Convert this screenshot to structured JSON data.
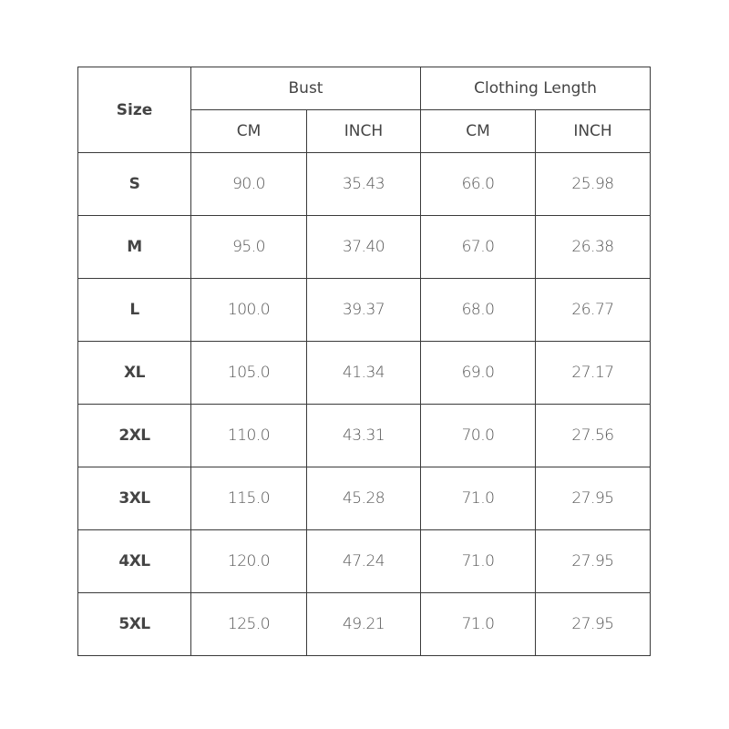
{
  "headers": {
    "size": "Size",
    "bust": "Bust",
    "length": "Clothing Length",
    "cm": "CM",
    "inch": "INCH"
  },
  "rows": [
    {
      "size": "S",
      "bust_cm": "90.0",
      "bust_in": "35.43",
      "len_cm": "66.0",
      "len_in": "25.98"
    },
    {
      "size": "M",
      "bust_cm": "95.0",
      "bust_in": "37.40",
      "len_cm": "67.0",
      "len_in": "26.38"
    },
    {
      "size": "L",
      "bust_cm": "100.0",
      "bust_in": "39.37",
      "len_cm": "68.0",
      "len_in": "26.77"
    },
    {
      "size": "XL",
      "bust_cm": "105.0",
      "bust_in": "41.34",
      "len_cm": "69.0",
      "len_in": "27.17"
    },
    {
      "size": "2XL",
      "bust_cm": "110.0",
      "bust_in": "43.31",
      "len_cm": "70.0",
      "len_in": "27.56"
    },
    {
      "size": "3XL",
      "bust_cm": "115.0",
      "bust_in": "45.28",
      "len_cm": "71.0",
      "len_in": "27.95"
    },
    {
      "size": "4XL",
      "bust_cm": "120.0",
      "bust_in": "47.24",
      "len_cm": "71.0",
      "len_in": "27.95"
    },
    {
      "size": "5XL",
      "bust_cm": "125.0",
      "bust_in": "49.21",
      "len_cm": "71.0",
      "len_in": "27.95"
    }
  ]
}
